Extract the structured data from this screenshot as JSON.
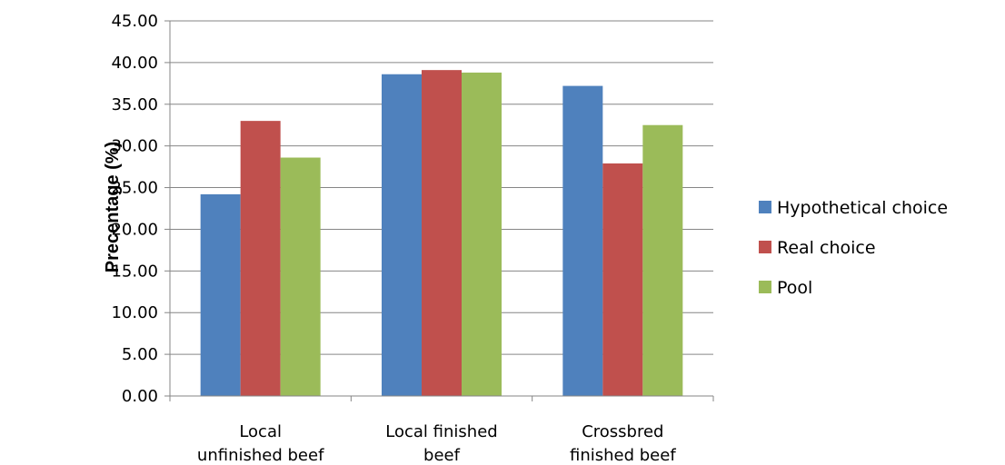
{
  "chart_data": {
    "type": "bar",
    "title": "",
    "xlabel": "",
    "ylabel": "Precentage (%)",
    "ylim": [
      0,
      45
    ],
    "yticks": [
      "0.00",
      "5.00",
      "10.00",
      "15.00",
      "20.00",
      "25.00",
      "30.00",
      "35.00",
      "40.00",
      "45.00"
    ],
    "grid": true,
    "legend_position": "right",
    "categories": [
      [
        "Local",
        "unfinished beef"
      ],
      [
        "Local finished",
        "beef"
      ],
      [
        "Crossbred",
        "finished beef"
      ]
    ],
    "series": [
      {
        "name": "Hypothetical choice",
        "color": "#4F81BD",
        "values": [
          24.2,
          38.6,
          37.2
        ]
      },
      {
        "name": "Real choice",
        "color": "#C0504D",
        "values": [
          33.0,
          39.1,
          27.9
        ]
      },
      {
        "name": "Pool",
        "color": "#9BBB59",
        "values": [
          28.6,
          38.8,
          32.5
        ]
      }
    ]
  }
}
